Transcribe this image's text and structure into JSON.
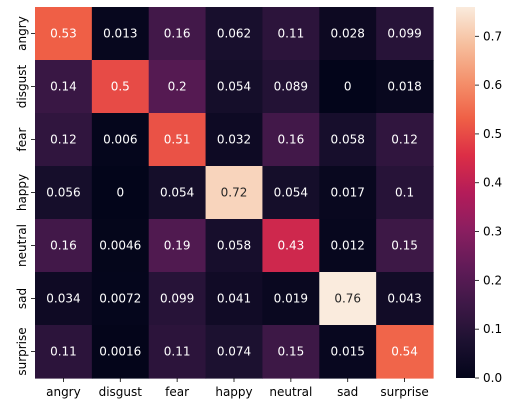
{
  "chart_data": {
    "type": "heatmap",
    "title": "",
    "xlabel": "",
    "ylabel": "",
    "x_categories": [
      "angry",
      "disgust",
      "fear",
      "happy",
      "neutral",
      "sad",
      "surprise"
    ],
    "y_categories": [
      "angry",
      "disgust",
      "fear",
      "happy",
      "neutral",
      "sad",
      "surprise"
    ],
    "values": [
      [
        0.53,
        0.013,
        0.16,
        0.062,
        0.11,
        0.028,
        0.099
      ],
      [
        0.14,
        0.5,
        0.2,
        0.054,
        0.089,
        0,
        0.018
      ],
      [
        0.12,
        0.006,
        0.51,
        0.032,
        0.16,
        0.058,
        0.12
      ],
      [
        0.056,
        0,
        0.054,
        0.72,
        0.054,
        0.017,
        0.1
      ],
      [
        0.16,
        0.0046,
        0.19,
        0.058,
        0.43,
        0.012,
        0.15
      ],
      [
        0.034,
        0.0072,
        0.099,
        0.041,
        0.019,
        0.76,
        0.043
      ],
      [
        0.11,
        0.0016,
        0.11,
        0.074,
        0.15,
        0.015,
        0.54
      ]
    ],
    "colorbar": {
      "range": [
        0,
        0.76
      ],
      "ticks": [
        0.0,
        0.1,
        0.2,
        0.3,
        0.4,
        0.5,
        0.6,
        0.7
      ],
      "tick_labels": [
        "0.0",
        "0.1",
        "0.2",
        "0.3",
        "0.4",
        "0.5",
        "0.6",
        "0.7"
      ],
      "colormap": "rocket",
      "placement": "right"
    },
    "annotations": true,
    "grid": false
  }
}
